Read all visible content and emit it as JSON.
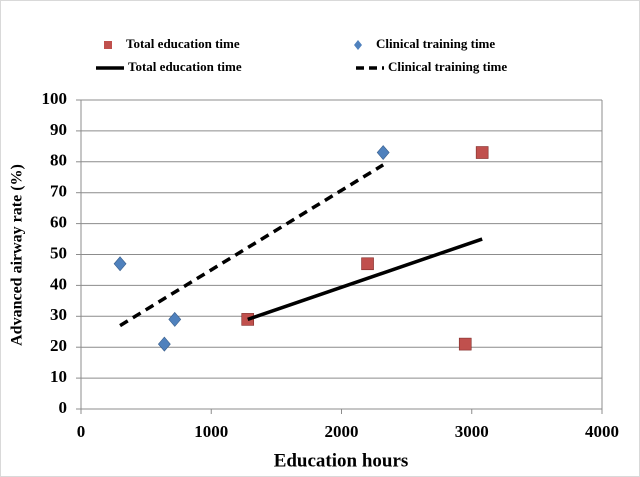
{
  "chart_data": {
    "type": "scatter",
    "xlabel": "Education hours",
    "ylabel": "Advanced airway rate (%)",
    "xlim": [
      0,
      4000
    ],
    "xticks": [
      0,
      1000,
      2000,
      3000,
      4000
    ],
    "ylim": [
      0,
      100
    ],
    "yticks": [
      0,
      10,
      20,
      30,
      40,
      50,
      60,
      70,
      80,
      90,
      100
    ],
    "grid": true,
    "series": [
      {
        "name": "Total education time",
        "color": "#c0504d",
        "marker": "square",
        "x": [
          1280,
          2200,
          2950,
          3080
        ],
        "values": [
          29,
          47,
          21,
          83
        ]
      },
      {
        "name": "Clinical training time",
        "color": "#4f81bd",
        "marker": "diamond",
        "x": [
          300,
          640,
          720,
          2320
        ],
        "values": [
          47,
          21,
          29,
          83
        ]
      },
      {
        "name": "Total education time",
        "color": "#000000",
        "line": "solid",
        "x": [
          1280,
          3080
        ],
        "values": [
          29,
          55
        ]
      },
      {
        "name": "Clinical training time",
        "color": "#000000",
        "line": "dashed",
        "x": [
          300,
          2320
        ],
        "values": [
          27,
          79
        ]
      }
    ]
  }
}
